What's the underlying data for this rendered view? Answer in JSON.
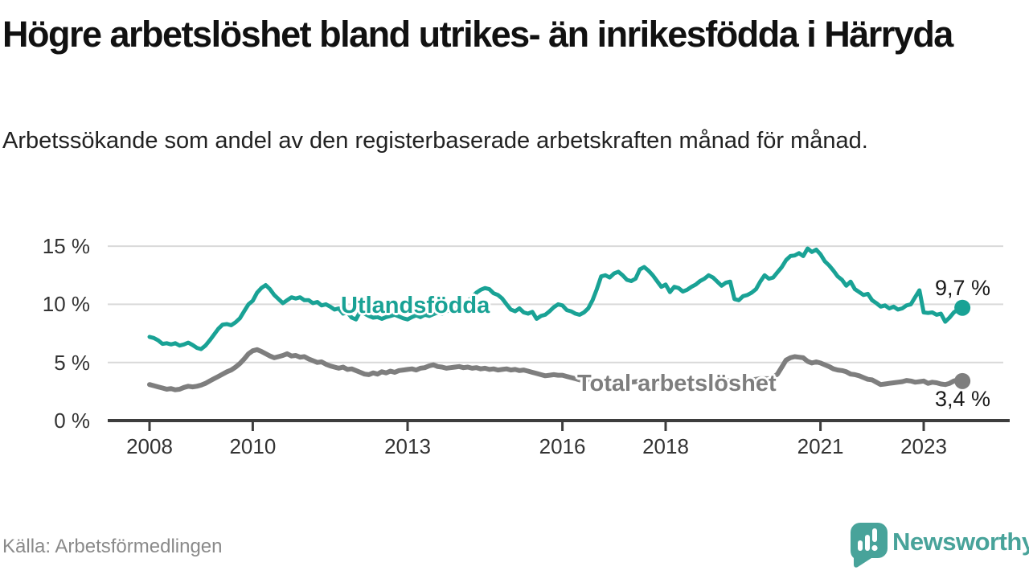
{
  "header": {
    "title": "Högre arbetslöshet bland utrikes- än inrikesfödda i Härryda",
    "subtitle": "Arbetssökande som andel av den registerbaserade arbetskraften månad för månad."
  },
  "footer": {
    "source": "Källa: Arbetsförmedlingen",
    "brand": "Newsworthy",
    "brand_color": "#48a39a"
  },
  "chart_data": {
    "type": "line",
    "title": "",
    "xlabel": "",
    "ylabel": "",
    "grid": true,
    "x_axis": {
      "start_year": 2008,
      "frequency": "monthly",
      "ticks": [
        {
          "label": "2008",
          "year": 2008
        },
        {
          "label": "2010",
          "year": 2010
        },
        {
          "label": "2013",
          "year": 2013
        },
        {
          "label": "2016",
          "year": 2016
        },
        {
          "label": "2018",
          "year": 2018
        },
        {
          "label": "2021",
          "year": 2021
        },
        {
          "label": "2023",
          "year": 2023
        }
      ]
    },
    "y_axis": {
      "ylim": [
        0,
        16.2
      ],
      "ticks": [
        {
          "label": "0 %",
          "value": 0
        },
        {
          "label": "5 %",
          "value": 5
        },
        {
          "label": "10 %",
          "value": 10
        },
        {
          "label": "15 %",
          "value": 15
        }
      ]
    },
    "colors": {
      "grid": "#d9d9d9",
      "axis": "#3d3d3d",
      "tick_text": "#333333"
    },
    "series": [
      {
        "name": "Utlandsfödda",
        "color": "#19a295",
        "end_label": "9,7 %",
        "end_value": 9.7,
        "values": [
          7.2,
          7.1,
          6.9,
          6.6,
          6.65,
          6.55,
          6.65,
          6.45,
          6.55,
          6.7,
          6.5,
          6.25,
          6.15,
          6.45,
          6.9,
          7.4,
          7.9,
          8.25,
          8.3,
          8.2,
          8.45,
          8.8,
          9.4,
          10.0,
          10.3,
          11.0,
          11.4,
          11.65,
          11.3,
          10.8,
          10.45,
          10.1,
          10.35,
          10.6,
          10.5,
          10.6,
          10.35,
          10.35,
          10.1,
          10.2,
          9.9,
          10.0,
          9.8,
          9.55,
          9.65,
          9.2,
          9.3,
          8.85,
          8.7,
          9.4,
          9.2,
          9.0,
          8.85,
          8.9,
          8.75,
          8.9,
          9.0,
          9.1,
          8.95,
          8.8,
          8.7,
          8.9,
          9.05,
          8.9,
          9.1,
          9.0,
          9.15,
          9.3,
          9.2,
          9.4,
          9.5,
          9.6,
          9.7,
          10.0,
          10.3,
          10.6,
          11.0,
          11.25,
          11.4,
          11.3,
          10.95,
          10.8,
          10.5,
          10.0,
          9.55,
          9.4,
          9.65,
          9.3,
          9.2,
          9.35,
          8.75,
          9.0,
          9.1,
          9.4,
          9.75,
          10.0,
          9.9,
          9.5,
          9.4,
          9.2,
          9.1,
          9.3,
          9.65,
          10.35,
          11.3,
          12.4,
          12.5,
          12.3,
          12.65,
          12.8,
          12.5,
          12.1,
          12.0,
          12.2,
          13.0,
          13.2,
          12.9,
          12.5,
          12.0,
          11.5,
          11.7,
          11.05,
          11.5,
          11.4,
          11.1,
          11.25,
          11.5,
          11.7,
          12.0,
          12.2,
          12.5,
          12.3,
          11.95,
          11.6,
          11.85,
          11.95,
          10.45,
          10.35,
          10.7,
          10.8,
          11.0,
          11.3,
          11.95,
          12.5,
          12.2,
          12.3,
          12.75,
          13.2,
          13.8,
          14.15,
          14.2,
          14.4,
          14.15,
          14.8,
          14.5,
          14.7,
          14.3,
          13.7,
          13.35,
          12.9,
          12.4,
          12.1,
          11.6,
          11.95,
          11.3,
          11.05,
          10.8,
          10.9,
          10.35,
          10.1,
          9.8,
          9.9,
          9.65,
          9.8,
          9.55,
          9.65,
          9.9,
          10.0,
          10.6,
          11.2,
          9.3,
          9.25,
          9.3,
          9.1,
          9.2,
          8.5,
          8.85,
          9.3,
          9.55,
          9.7
        ]
      },
      {
        "name": "Total arbetslöshet",
        "color": "#7e7e7e",
        "end_label": "3,4 %",
        "end_value": 3.4,
        "values": [
          3.1,
          3.0,
          2.9,
          2.8,
          2.7,
          2.75,
          2.65,
          2.7,
          2.85,
          2.95,
          2.9,
          2.95,
          3.05,
          3.2,
          3.4,
          3.6,
          3.8,
          4.0,
          4.2,
          4.35,
          4.6,
          4.9,
          5.3,
          5.75,
          6.0,
          6.1,
          5.95,
          5.75,
          5.55,
          5.4,
          5.5,
          5.6,
          5.75,
          5.55,
          5.6,
          5.45,
          5.5,
          5.3,
          5.15,
          5.0,
          5.05,
          4.85,
          4.7,
          4.6,
          4.5,
          4.6,
          4.4,
          4.45,
          4.3,
          4.15,
          4.0,
          3.95,
          4.1,
          4.0,
          4.2,
          4.1,
          4.25,
          4.15,
          4.3,
          4.35,
          4.4,
          4.45,
          4.35,
          4.5,
          4.55,
          4.7,
          4.8,
          4.65,
          4.6,
          4.5,
          4.55,
          4.6,
          4.65,
          4.55,
          4.6,
          4.5,
          4.55,
          4.45,
          4.5,
          4.4,
          4.45,
          4.35,
          4.4,
          4.45,
          4.35,
          4.4,
          4.3,
          4.35,
          4.25,
          4.15,
          4.05,
          3.95,
          3.85,
          3.9,
          3.95,
          3.9,
          3.9,
          3.8,
          3.7,
          3.6,
          3.5,
          3.5,
          3.45,
          3.4,
          3.45,
          3.4,
          3.45,
          3.5,
          3.45,
          3.4,
          3.35,
          3.3,
          3.3,
          3.35,
          3.4,
          3.35,
          3.3,
          3.35,
          3.3,
          3.35,
          3.3,
          3.25,
          3.3,
          3.25,
          3.2,
          3.25,
          3.3,
          3.25,
          3.3,
          3.35,
          3.3,
          3.35,
          3.4,
          3.35,
          3.4,
          3.45,
          3.4,
          3.45,
          3.5,
          3.45,
          3.5,
          3.55,
          3.6,
          3.6,
          3.6,
          3.7,
          4.0,
          4.6,
          5.2,
          5.4,
          5.5,
          5.45,
          5.4,
          5.1,
          4.95,
          5.05,
          4.95,
          4.8,
          4.65,
          4.45,
          4.35,
          4.3,
          4.2,
          4.0,
          3.95,
          3.85,
          3.7,
          3.55,
          3.5,
          3.3,
          3.1,
          3.15,
          3.2,
          3.25,
          3.3,
          3.35,
          3.45,
          3.4,
          3.3,
          3.35,
          3.4,
          3.2,
          3.3,
          3.25,
          3.15,
          3.1,
          3.2,
          3.4,
          3.5,
          3.4
        ]
      }
    ]
  }
}
